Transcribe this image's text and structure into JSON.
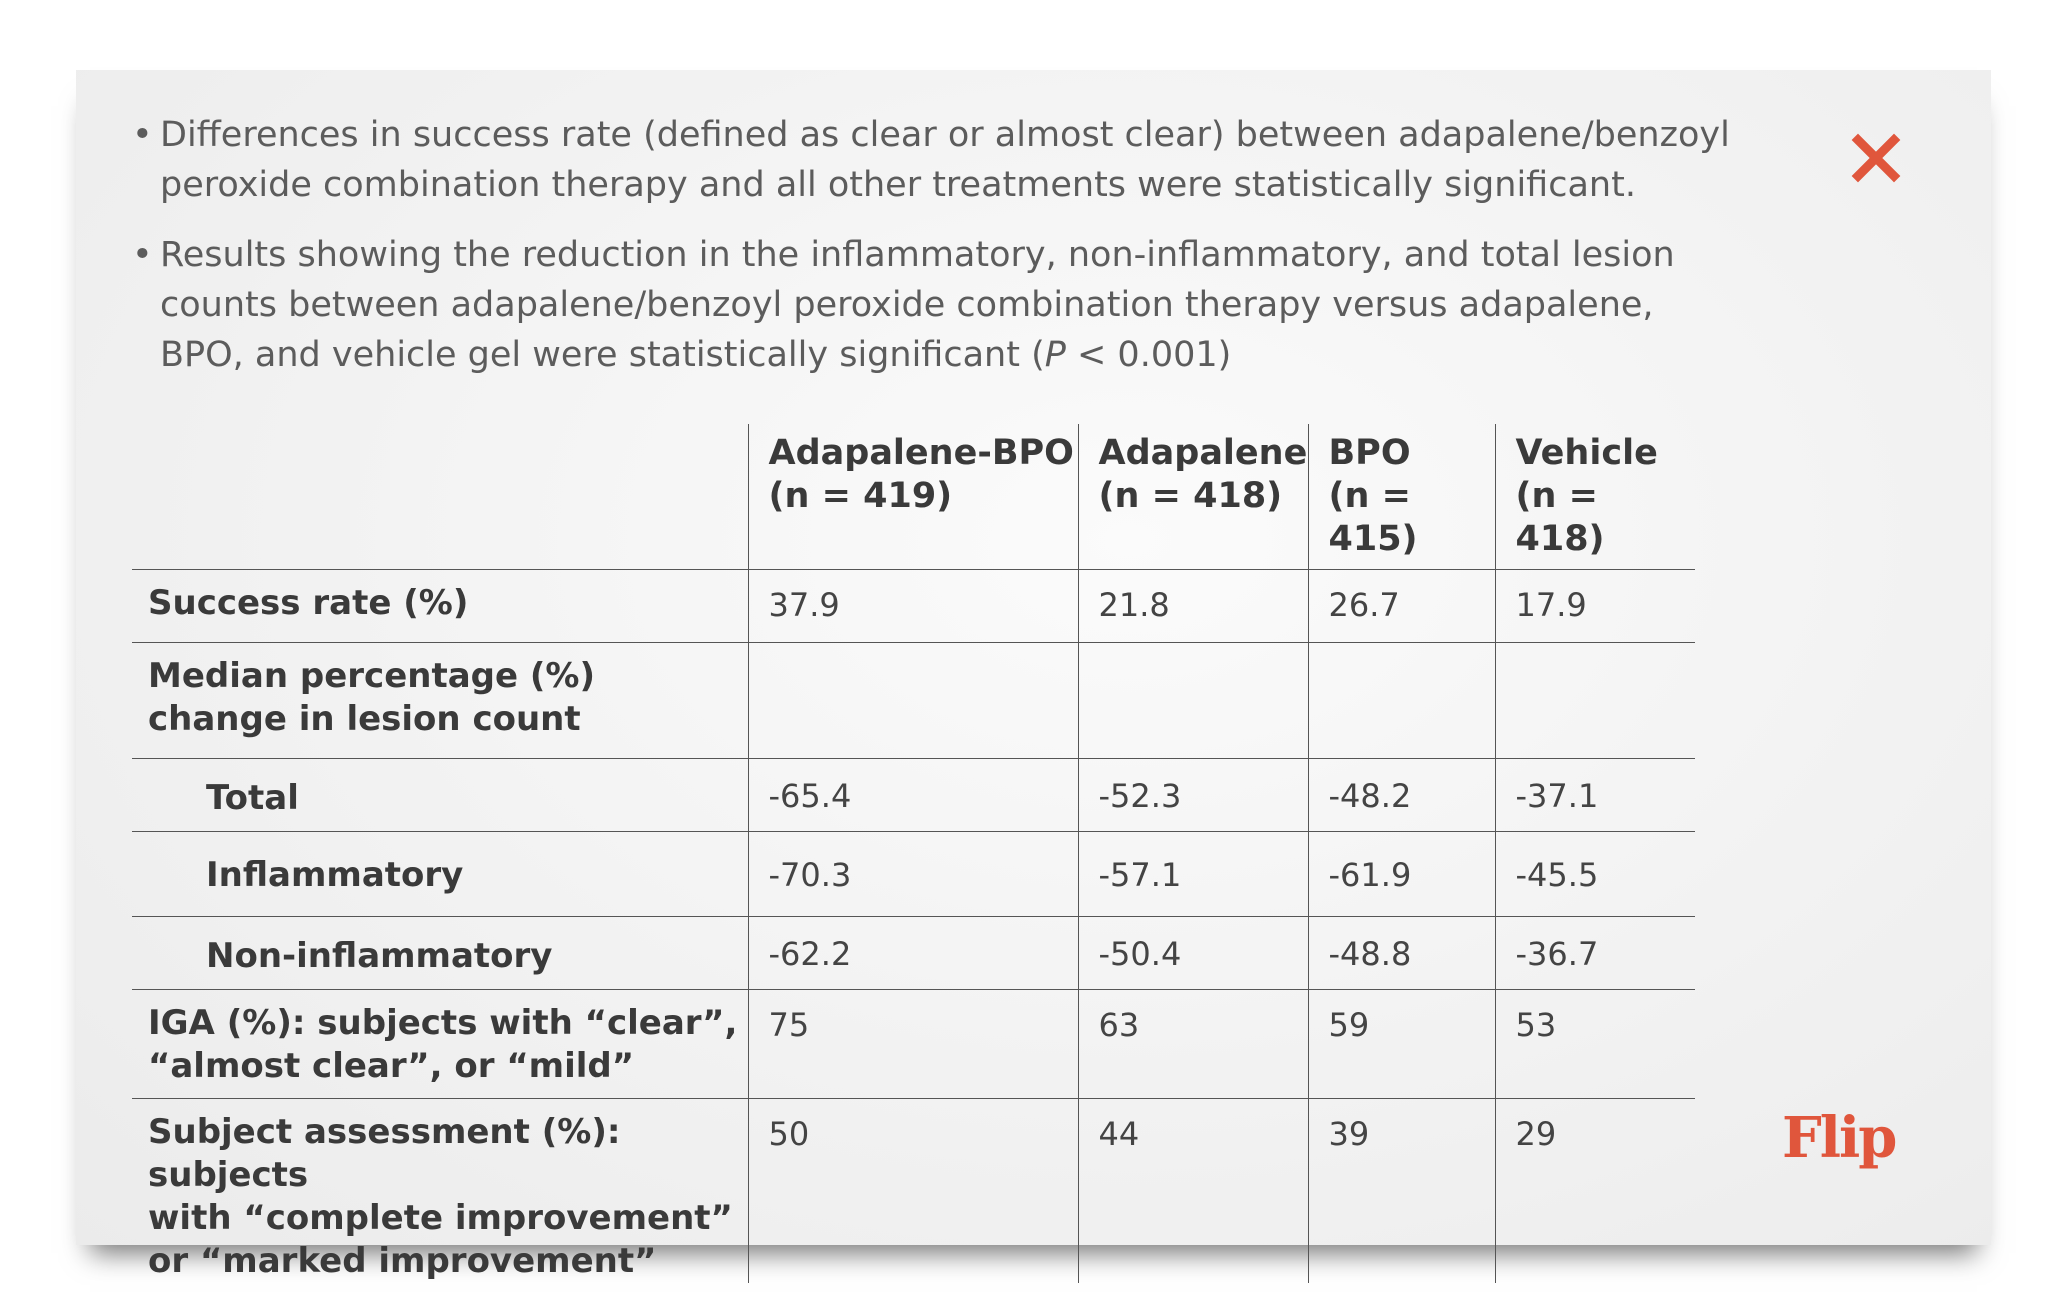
{
  "bullets": [
    {
      "line1": "Differences in success rate (defined as clear or almost clear) between adapalene/benzoyl",
      "line2": "peroxide combination therapy and all other treatments were statistically significant."
    },
    {
      "line1": "Results showing the reduction in the inflammatory, non-inflammatory, and total lesion",
      "line2": "counts between adapalene/benzoyl peroxide combination therapy versus adapalene,",
      "line3a": "BPO, and vehicle gel were statistically significant (",
      "line3p": "P",
      "line3b": " < 0.001)"
    }
  ],
  "table": {
    "headers": [
      {
        "name": "Adapalene-BPO",
        "n": "(n = 419)"
      },
      {
        "name": "Adapalene",
        "n": "(n = 418)"
      },
      {
        "name": "BPO",
        "n": "(n = 415)"
      },
      {
        "name": "Vehicle",
        "n": "(n = 418)"
      }
    ],
    "rows": [
      {
        "label_lines": [
          "Success rate (%)"
        ],
        "values": [
          "37.9",
          "21.8",
          "26.7",
          "17.9"
        ]
      },
      {
        "label_lines": [
          "Median percentage (%)",
          "change in lesion count"
        ],
        "values": [
          "",
          "",
          "",
          ""
        ]
      },
      {
        "label_lines": [
          "Total"
        ],
        "values": [
          "-65.4",
          "-52.3",
          "-48.2",
          "-37.1"
        ]
      },
      {
        "label_lines": [
          "Inflammatory"
        ],
        "values": [
          "-70.3",
          "-57.1",
          "-61.9",
          "-45.5"
        ]
      },
      {
        "label_lines": [
          "Non-inflammatory"
        ],
        "values": [
          "-62.2",
          "-50.4",
          "-48.8",
          "-36.7"
        ]
      },
      {
        "label_lines": [
          "IGA (%): subjects with “clear”,",
          "“almost clear”, or “mild”"
        ],
        "values": [
          "75",
          "63",
          "59",
          "53"
        ]
      },
      {
        "label_lines": [
          "Subject assessment (%): subjects",
          "with “complete improvement”",
          "or “marked improvement”"
        ],
        "values": [
          "50",
          "44",
          "39",
          "29"
        ]
      }
    ]
  },
  "controls": {
    "close_label": "x",
    "flip_label": "Flip",
    "accent_color": "#e0563c"
  }
}
